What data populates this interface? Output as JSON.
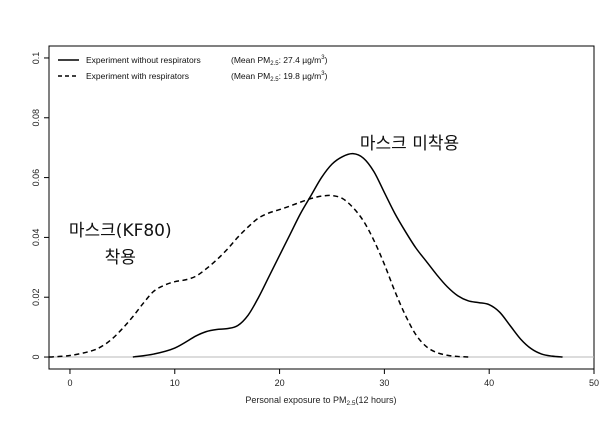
{
  "chart_data": {
    "type": "line",
    "xlabel": "Personal exposure to PM2.5(12 hours)",
    "xlabel_parts": {
      "main": "Personal exposure to PM",
      "sub": "2.5",
      "rest": "(12 hours)"
    },
    "ylabel": "",
    "xlim": [
      -2,
      50
    ],
    "ylim": [
      -0.004,
      0.104
    ],
    "x_ticks": [
      0,
      10,
      20,
      30,
      40,
      50
    ],
    "y_ticks": [
      0,
      0.02,
      0.04,
      0.06,
      0.08,
      0.1
    ],
    "y_tick_labels": [
      "0",
      "0.02",
      "0.04",
      "0.06",
      "0.08",
      "0.1"
    ],
    "grid": false,
    "legend_position": "top-left",
    "series": [
      {
        "name": "Experiment without respirators (Mean PM2.5: 27.4 µg/m3)",
        "legend": {
          "label": "Experiment without respirators",
          "mean_prefix": "(Mean PM",
          "mean_sub": "2.5",
          "mean_value": ": 27.4 µg/m",
          "mean_sup": "3",
          "mean_suffix": ")"
        },
        "style": "solid",
        "x": [
          6,
          8,
          10,
          12,
          13,
          14,
          15,
          16,
          17,
          18,
          19,
          20,
          21,
          22,
          23,
          24,
          25,
          26,
          27,
          28,
          29,
          30,
          31,
          32,
          33,
          34,
          35,
          36,
          37,
          38,
          39,
          40,
          41,
          42,
          43,
          44,
          45,
          46,
          47
        ],
        "y": [
          0.0,
          0.001,
          0.003,
          0.007,
          0.0085,
          0.0092,
          0.0095,
          0.0105,
          0.014,
          0.02,
          0.027,
          0.034,
          0.041,
          0.048,
          0.054,
          0.06,
          0.0645,
          0.067,
          0.068,
          0.0665,
          0.062,
          0.055,
          0.048,
          0.042,
          0.0365,
          0.032,
          0.0275,
          0.0235,
          0.0205,
          0.0188,
          0.0182,
          0.0175,
          0.015,
          0.0105,
          0.006,
          0.0028,
          0.001,
          0.0003,
          0.0
        ]
      },
      {
        "name": "Experiment with respirators (Mean PM2.5: 19.8 µg/m3)",
        "legend": {
          "label": "Experiment with respirators",
          "mean_prefix": "(Mean PM",
          "mean_sub": "2.5",
          "mean_value": ": 19.8 µg/m",
          "mean_sup": "3",
          "mean_suffix": ")"
        },
        "style": "dashed",
        "x": [
          -2,
          0,
          2,
          3,
          4,
          5,
          6,
          7,
          8,
          9,
          10,
          11,
          12,
          13,
          14,
          15,
          16,
          17,
          18,
          19,
          20,
          21,
          22,
          23,
          24,
          25,
          26,
          27,
          28,
          29,
          30,
          31,
          32,
          33,
          34,
          35,
          36,
          37,
          38
        ],
        "y": [
          0.0,
          0.0005,
          0.002,
          0.0035,
          0.006,
          0.0095,
          0.0135,
          0.018,
          0.022,
          0.024,
          0.0252,
          0.0258,
          0.027,
          0.0295,
          0.0325,
          0.036,
          0.04,
          0.0435,
          0.0465,
          0.0482,
          0.0493,
          0.0505,
          0.0518,
          0.053,
          0.0538,
          0.054,
          0.053,
          0.05,
          0.0455,
          0.039,
          0.031,
          0.022,
          0.014,
          0.0075,
          0.0035,
          0.0015,
          0.0006,
          0.0002,
          0.0
        ]
      }
    ],
    "annotations": [
      {
        "text": "마스크 미착용",
        "x": 32.4,
        "y": 0.0695
      },
      {
        "text": "마스크(KF80)",
        "x": 4.8,
        "y": 0.0405
      },
      {
        "text": "착용",
        "x": 4.8,
        "y": 0.0315
      }
    ]
  }
}
